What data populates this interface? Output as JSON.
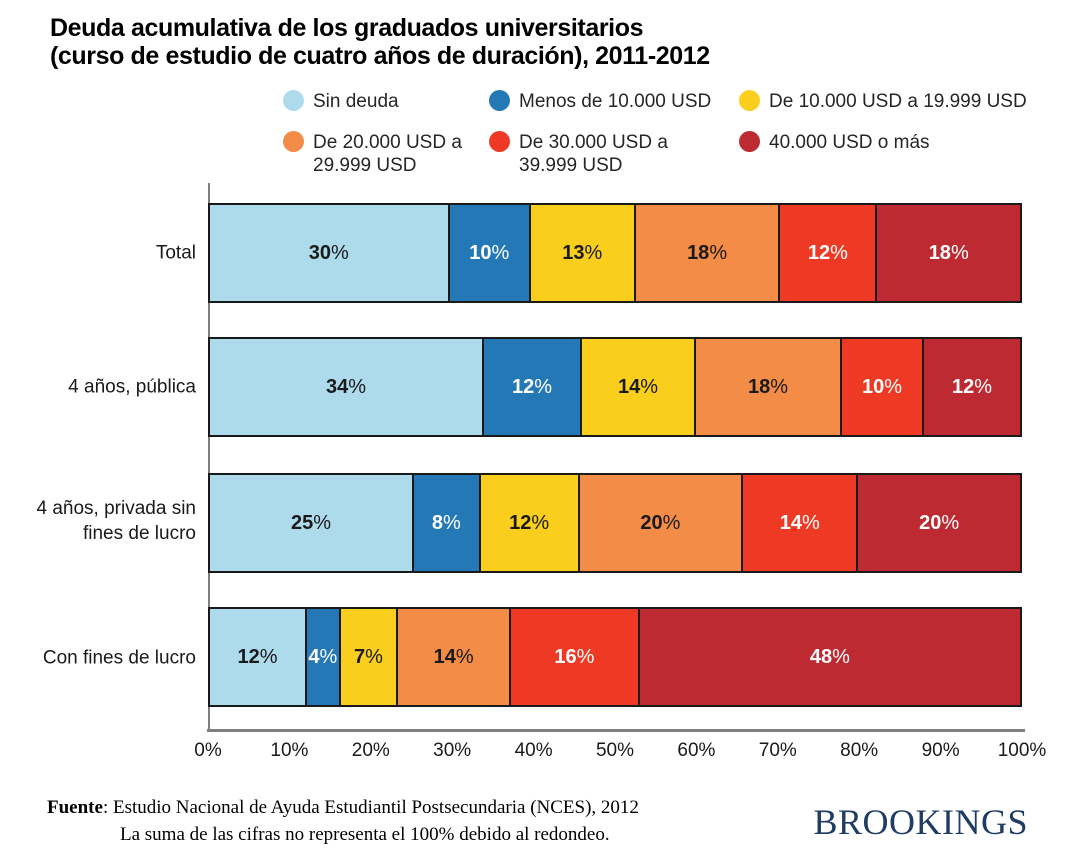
{
  "title": {
    "line1": "Deuda acumulativa de los graduados universitarios",
    "line2": "(curso de estudio de cuatro años de duración), 2011-2012"
  },
  "legend": {
    "items": [
      {
        "label": "Sin deuda",
        "color": "#AEDBEB"
      },
      {
        "label": "Menos de 10.000 USD",
        "color": "#2478B5"
      },
      {
        "label": "De 10.000 USD a 19.999 USD",
        "color": "#F9CE1D"
      },
      {
        "label": "De 20.000 USD a 29.999 USD",
        "color": "#F28C46"
      },
      {
        "label": "De 30.000 USD a 39.999 USD",
        "color": "#EE3A24"
      },
      {
        "label": "40.000 USD o más",
        "color": "#BE2A32"
      }
    ]
  },
  "chart_data": {
    "type": "bar",
    "orientation": "horizontal",
    "stacked": true,
    "normalized_to_100": true,
    "title": "Deuda acumulativa de los graduados universitarios (curso de estudio de cuatro años de duración), 2011-2012",
    "categories": [
      "Total",
      "4 años, pública",
      "4 años, privada sin fines de lucro",
      "Con fines de lucro"
    ],
    "series": [
      {
        "name": "Sin deuda",
        "color": "#AEDBEB",
        "label_color": "#1a1a1a",
        "values": [
          30,
          34,
          25,
          12
        ]
      },
      {
        "name": "Menos de 10.000 USD",
        "color": "#2478B5",
        "label_color": "#ffffff",
        "values": [
          10,
          12,
          8,
          4
        ]
      },
      {
        "name": "De 10.000 USD a 19.999 USD",
        "color": "#F9CE1D",
        "label_color": "#1a1a1a",
        "values": [
          13,
          14,
          12,
          7
        ]
      },
      {
        "name": "De 20.000 USD a 29.999 USD",
        "color": "#F28C46",
        "label_color": "#1a1a1a",
        "values": [
          18,
          18,
          20,
          14
        ]
      },
      {
        "name": "De 30.000 USD a 39.999 USD",
        "color": "#EE3A24",
        "label_color": "#ffffff",
        "values": [
          12,
          10,
          14,
          16
        ]
      },
      {
        "name": "40.000 USD o más",
        "color": "#BE2A32",
        "label_color": "#ffffff",
        "values": [
          18,
          12,
          20,
          48
        ]
      }
    ],
    "value_suffix": "%",
    "x_ticks": [
      "0%",
      "10%",
      "20%",
      "30%",
      "40%",
      "50%",
      "60%",
      "70%",
      "80%",
      "90%",
      "100%"
    ],
    "xlim": [
      0,
      100
    ],
    "grid": false,
    "legend_position": "top"
  },
  "footer": {
    "source_label": "Fuente",
    "source_text": ": Estudio Nacional de Ayuda Estudiantil Postsecundaria (NCES), 2012",
    "note": "La suma de las cifras no representa el 100% debido al redondeo.",
    "brand": "BROOKINGS"
  }
}
